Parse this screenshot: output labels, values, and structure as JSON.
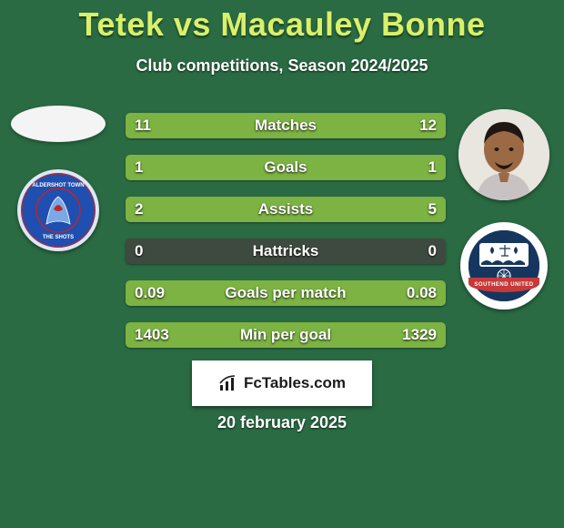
{
  "background_color": "#2a6b43",
  "title": {
    "text": "Tetek vs Macauley Bonne",
    "color": "#d9f06a",
    "fontsize": 36,
    "fontweight": 900
  },
  "subtitle": {
    "text": "Club competitions, Season 2024/2025",
    "color": "#ffffff",
    "fontsize": 18,
    "fontweight": 700
  },
  "left_team": {
    "placeholder_color": "#f4f4f4",
    "crest_color": "#1f4fb0",
    "crest_border": "#dfe7f3",
    "crest_text_top": "ALDERSHOT TOWN",
    "crest_text_bottom": "THE SHOTS",
    "crest_text_color": "#ffffff"
  },
  "right_team": {
    "photo_bg": "#e9e5df",
    "photo_skin": "#9b6a45",
    "photo_hair": "#1e1712",
    "photo_shirt": "#c9c2c2",
    "crest_bg": "#ffffff",
    "crest_inner": "#16365f",
    "crest_band_color": "#c63a3a",
    "crest_band_text": "SOUTHEND UNITED",
    "crest_text_color": "#ffffff"
  },
  "bars": {
    "track_color": "#3e4a3f",
    "left_fill_color": "#7cb342",
    "right_fill_color": "#7cb342",
    "label_color": "#ffffff",
    "value_color": "#ffffff",
    "fontsize": 17,
    "rows": [
      {
        "label": "Matches",
        "left": "11",
        "right": "12",
        "left_pct": 47.8,
        "right_pct": 52.2
      },
      {
        "label": "Goals",
        "left": "1",
        "right": "1",
        "left_pct": 50.0,
        "right_pct": 50.0
      },
      {
        "label": "Assists",
        "left": "2",
        "right": "5",
        "left_pct": 28.6,
        "right_pct": 71.4
      },
      {
        "label": "Hattricks",
        "left": "0",
        "right": "0",
        "left_pct": 0.0,
        "right_pct": 0.0
      },
      {
        "label": "Goals per match",
        "left": "0.09",
        "right": "0.08",
        "left_pct": 52.9,
        "right_pct": 47.1
      },
      {
        "label": "Min per goal",
        "left": "1403",
        "right": "1329",
        "left_pct": 51.4,
        "right_pct": 48.6
      }
    ]
  },
  "badge": {
    "text": "FcTables.com",
    "bg": "#ffffff",
    "color": "#1b1b1b",
    "icon_color": "#1b1b1b"
  },
  "date": {
    "text": "20 february 2025",
    "color": "#ffffff",
    "fontsize": 18
  }
}
